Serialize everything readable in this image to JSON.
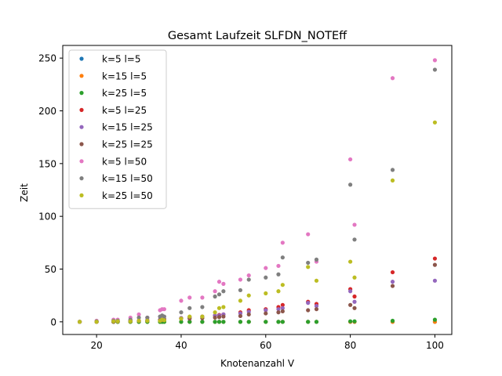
{
  "chart_data": {
    "type": "scatter",
    "title": "Gesamt Laufzeit SLFDN_NOTEff",
    "xlabel": "Knotenanzahl V",
    "ylabel": "Zeit",
    "xlim": [
      12,
      104
    ],
    "ylim": [
      -12,
      262
    ],
    "x_ticks": [
      20,
      40,
      60,
      80,
      100
    ],
    "y_ticks": [
      0,
      50,
      100,
      150,
      200,
      250
    ],
    "grid": false,
    "legend_position": "top-left",
    "x": [
      16,
      20,
      24,
      25,
      28,
      30,
      32,
      35,
      35.5,
      36,
      40,
      42,
      45,
      48,
      49,
      50,
      54,
      56,
      60,
      63,
      64,
      70,
      72,
      80,
      81,
      90,
      100
    ],
    "series": [
      {
        "name": "k=5 l=5",
        "color": "#1f77b4",
        "values": [
          0,
          0,
          0,
          0,
          0,
          0,
          0,
          0,
          0,
          0,
          0,
          0,
          0,
          0,
          0,
          0,
          0,
          0,
          0,
          0,
          0,
          0,
          0,
          0,
          0,
          0,
          0
        ]
      },
      {
        "name": "k=15 l=5",
        "color": "#ff7f0e",
        "values": [
          0,
          0,
          0,
          0,
          0,
          0,
          0,
          0,
          0,
          0,
          0,
          0,
          0,
          0,
          0,
          0,
          0,
          0,
          0,
          0,
          0,
          0,
          0,
          0,
          0,
          0,
          0
        ]
      },
      {
        "name": "k=25 l=5",
        "color": "#2ca02c",
        "values": [
          0,
          0,
          0,
          0,
          0,
          0,
          0,
          0,
          0,
          0,
          0,
          0,
          0,
          0,
          0,
          0,
          0,
          0,
          0,
          0,
          0,
          0,
          0,
          0.5,
          0.5,
          1,
          2
        ]
      },
      {
        "name": "k=5 l=25",
        "color": "#d62728",
        "values": [
          0,
          0,
          0.5,
          0.5,
          1,
          1,
          1.5,
          2,
          2,
          2.5,
          3.5,
          4.5,
          5,
          6,
          6.5,
          7,
          9,
          11,
          12,
          14,
          16,
          19,
          17,
          31,
          24,
          47,
          60
        ]
      },
      {
        "name": "k=15 l=25",
        "color": "#9467bd",
        "values": [
          0,
          0,
          0.5,
          0.5,
          1,
          1,
          1.5,
          2,
          2,
          2.5,
          3.5,
          4,
          5,
          6,
          6,
          7,
          8,
          9.5,
          11,
          12,
          13,
          18,
          15,
          29,
          19,
          38,
          39
        ]
      },
      {
        "name": "k=25 l=25",
        "color": "#8c564b",
        "values": [
          0,
          0,
          0,
          0.5,
          0.5,
          1,
          1,
          1.5,
          1.5,
          2,
          3,
          3,
          3.5,
          4,
          4.5,
          5,
          5.5,
          7,
          8,
          9,
          10,
          11,
          12,
          16,
          13,
          34,
          54
        ]
      },
      {
        "name": "k=5 l=50",
        "color": "#e377c2",
        "values": [
          0,
          1,
          2,
          2,
          4,
          7,
          4,
          11,
          12,
          12,
          20,
          23,
          23,
          29,
          38,
          36,
          40,
          44,
          51,
          53,
          75,
          83,
          57,
          154,
          92,
          231,
          248
        ]
      },
      {
        "name": "k=15 l=50",
        "color": "#7f7f7f",
        "values": [
          0,
          0.5,
          1,
          1,
          2,
          4,
          4,
          5,
          6,
          5,
          9,
          13,
          14,
          24,
          26,
          29,
          30,
          40,
          42,
          45,
          61,
          56,
          59,
          130,
          78,
          144,
          239
        ]
      },
      {
        "name": "k=25 l=50",
        "color": "#bcbd22",
        "values": [
          0,
          0,
          0.5,
          0.5,
          0.5,
          1,
          1,
          1,
          2,
          1.5,
          3,
          5,
          5,
          9,
          13,
          14,
          20,
          25,
          27,
          29,
          35,
          52,
          39,
          57,
          42,
          134,
          189
        ]
      }
    ]
  }
}
